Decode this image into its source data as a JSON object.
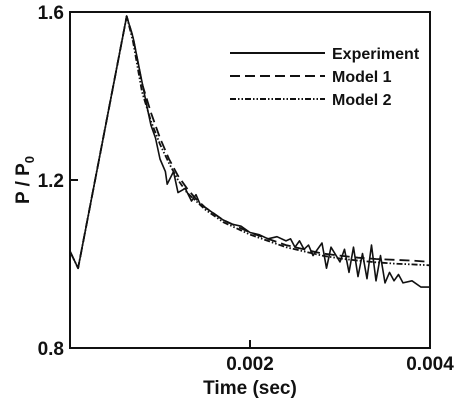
{
  "chart_data": {
    "type": "line",
    "title": "",
    "xlabel": "Time (sec)",
    "ylabel_main": "P / P",
    "ylabel_sub": "0",
    "xlim": [
      0,
      0.004
    ],
    "ylim": [
      0.8,
      1.6
    ],
    "xticks": [
      0.002,
      0.004
    ],
    "xtick_labels": [
      "0.002",
      "0.004"
    ],
    "yticks": [
      0.8,
      1.2,
      1.6
    ],
    "ytick_labels": [
      "0.8",
      "1.2",
      "1.6"
    ],
    "grid": false,
    "legend_position": "top-right",
    "series": [
      {
        "name": "Experiment",
        "style": "solid",
        "color": "#111111",
        "x": [
          0.0,
          9e-05,
          0.00063,
          0.0007,
          0.00085,
          0.0009,
          0.00095,
          0.001,
          0.00106,
          0.00108,
          0.00115,
          0.0012,
          0.00128,
          0.00135,
          0.0014,
          0.00145,
          0.0015,
          0.0016,
          0.0017,
          0.0018,
          0.0019,
          0.002,
          0.0021,
          0.0022,
          0.0023,
          0.0024,
          0.00245,
          0.0025,
          0.00255,
          0.0026,
          0.00265,
          0.0027,
          0.0028,
          0.00285,
          0.0029,
          0.003,
          0.00305,
          0.0031,
          0.00315,
          0.0032,
          0.00325,
          0.0033,
          0.00335,
          0.0034,
          0.00345,
          0.0035,
          0.00355,
          0.0036,
          0.00365,
          0.0037,
          0.0038,
          0.0039,
          0.004
        ],
        "values": [
          1.03,
          0.99,
          1.59,
          1.54,
          1.38,
          1.33,
          1.3,
          1.25,
          1.22,
          1.19,
          1.22,
          1.17,
          1.18,
          1.15,
          1.165,
          1.14,
          1.135,
          1.12,
          1.105,
          1.095,
          1.09,
          1.075,
          1.07,
          1.06,
          1.065,
          1.055,
          1.06,
          1.04,
          1.055,
          1.035,
          1.045,
          1.02,
          1.05,
          0.99,
          1.04,
          1.005,
          1.035,
          0.98,
          1.04,
          0.97,
          1.025,
          0.965,
          1.045,
          0.96,
          1.02,
          0.955,
          0.98,
          0.96,
          0.975,
          0.955,
          0.96,
          0.945,
          0.945
        ]
      },
      {
        "name": "Model 1",
        "style": "dashed",
        "color": "#111111",
        "x": [
          0.0,
          9e-05,
          0.00063,
          0.0007,
          0.0008,
          0.0009,
          0.001,
          0.0011,
          0.0012,
          0.0013,
          0.0014,
          0.0015,
          0.0016,
          0.0017,
          0.0018,
          0.0019,
          0.002,
          0.0022,
          0.0024,
          0.0026,
          0.0028,
          0.003,
          0.0032,
          0.0034,
          0.0036,
          0.0038,
          0.004
        ],
        "values": [
          1.03,
          0.99,
          1.59,
          1.54,
          1.43,
          1.36,
          1.3,
          1.25,
          1.21,
          1.18,
          1.155,
          1.135,
          1.12,
          1.105,
          1.095,
          1.085,
          1.075,
          1.06,
          1.045,
          1.035,
          1.025,
          1.02,
          1.015,
          1.012,
          1.01,
          1.008,
          1.005
        ]
      },
      {
        "name": "Model 2",
        "style": "dashdotdot",
        "color": "#111111",
        "x": [
          0.0,
          9e-05,
          0.00063,
          0.0007,
          0.0008,
          0.0009,
          0.001,
          0.0011,
          0.0012,
          0.0013,
          0.0014,
          0.0015,
          0.0016,
          0.0017,
          0.0018,
          0.0019,
          0.002,
          0.0022,
          0.0024,
          0.0026,
          0.0028,
          0.003,
          0.0032,
          0.0034,
          0.0036,
          0.0038,
          0.004
        ],
        "values": [
          1.03,
          0.99,
          1.59,
          1.53,
          1.41,
          1.34,
          1.285,
          1.24,
          1.2,
          1.17,
          1.15,
          1.13,
          1.115,
          1.1,
          1.09,
          1.08,
          1.07,
          1.055,
          1.04,
          1.03,
          1.02,
          1.013,
          1.008,
          1.004,
          1.001,
          0.999,
          0.997
        ]
      }
    ]
  }
}
